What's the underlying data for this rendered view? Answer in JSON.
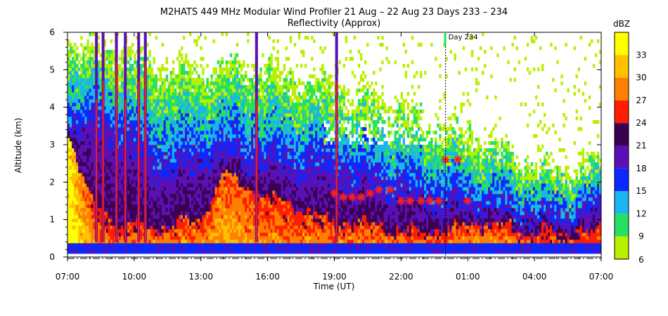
{
  "chart_data": {
    "type": "heatmap",
    "title": "M2HATS 449 MHz Modular Wind Profiler  21 Aug – 22 Aug 23 Days 233 – 234",
    "subtitle": "Reflectivity (Approx)",
    "xlabel": "Time (UT)",
    "ylabel": "Altitude (km)",
    "x_tick_labels": [
      "07:00",
      "10:00",
      "13:00",
      "16:00",
      "19:00",
      "22:00",
      "01:00",
      "04:00",
      "07:00"
    ],
    "x_tick_hours": [
      7,
      10,
      13,
      16,
      19,
      22,
      25,
      28,
      31
    ],
    "xlim_hours": [
      7,
      31
    ],
    "y_tick_labels": [
      "0",
      "1",
      "2",
      "3",
      "4",
      "5",
      "6"
    ],
    "ylim": [
      0,
      6
    ],
    "colorbar": {
      "label": "dBZ",
      "tick_labels": [
        "6",
        "9",
        "12",
        "15",
        "18",
        "21",
        "24",
        "27",
        "30",
        "33"
      ],
      "levels": [
        6,
        9,
        12,
        15,
        18,
        21,
        24,
        27,
        30,
        33,
        36
      ],
      "colors": [
        "#b8f000",
        "#28e060",
        "#1ab4ee",
        "#0a28ff",
        "#5a10b4",
        "#3c0050",
        "#ff1e00",
        "#ff8000",
        "#ffc000",
        "#ffff00"
      ]
    },
    "day_marker": {
      "label": "Day 234",
      "time_hours": 24.0
    },
    "markers": [
      {
        "t": 19.0,
        "z": 1.7
      },
      {
        "t": 19.4,
        "z": 1.6
      },
      {
        "t": 19.8,
        "z": 1.6
      },
      {
        "t": 20.2,
        "z": 1.6
      },
      {
        "t": 20.6,
        "z": 1.7
      },
      {
        "t": 21.0,
        "z": 1.8
      },
      {
        "t": 21.5,
        "z": 1.8
      },
      {
        "t": 22.0,
        "z": 1.5
      },
      {
        "t": 22.4,
        "z": 1.5
      },
      {
        "t": 22.9,
        "z": 1.5
      },
      {
        "t": 23.3,
        "z": 1.5
      },
      {
        "t": 23.7,
        "z": 1.5
      },
      {
        "t": 24.0,
        "z": 2.6
      },
      {
        "t": 24.55,
        "z": 2.6
      },
      {
        "t": 25.0,
        "z": 1.5
      }
    ],
    "profile_breakpoints": [
      {
        "t": 7.0,
        "top": 5.8,
        "dense": 3.5,
        "core": 3.4,
        "peak": 36
      },
      {
        "t": 8.3,
        "top": 5.6,
        "dense": 3.2,
        "core": 1.2,
        "peak": 27
      },
      {
        "t": 9.5,
        "top": 5.5,
        "dense": 3.0,
        "core": 0.9,
        "peak": 27
      },
      {
        "t": 11.0,
        "top": 5.2,
        "dense": 2.2,
        "core": 0.8,
        "peak": 28
      },
      {
        "t": 13.0,
        "top": 5.0,
        "dense": 2.4,
        "core": 1.0,
        "peak": 28
      },
      {
        "t": 14.0,
        "top": 5.2,
        "dense": 2.7,
        "core": 2.2,
        "peak": 30
      },
      {
        "t": 16.0,
        "top": 5.0,
        "dense": 2.4,
        "core": 1.6,
        "peak": 28
      },
      {
        "t": 19.0,
        "top": 4.6,
        "dense": 2.1,
        "core": 0.9,
        "peak": 28
      },
      {
        "t": 20.5,
        "top": 4.3,
        "dense": 1.9,
        "core": 0.9,
        "peak": 28
      },
      {
        "t": 22.0,
        "top": 4.0,
        "dense": 1.6,
        "core": 0.7,
        "peak": 27
      },
      {
        "t": 24.0,
        "top": 3.5,
        "dense": 1.3,
        "core": 0.7,
        "peak": 27
      },
      {
        "t": 25.5,
        "top": 3.2,
        "dense": 1.3,
        "core": 0.9,
        "peak": 29
      },
      {
        "t": 27.5,
        "top": 2.6,
        "dense": 1.0,
        "core": 0.7,
        "peak": 27
      },
      {
        "t": 29.0,
        "top": 2.4,
        "dense": 0.9,
        "core": 0.6,
        "peak": 26
      },
      {
        "t": 31.0,
        "top": 2.6,
        "dense": 1.2,
        "core": 0.7,
        "peak": 27
      }
    ],
    "grid": false,
    "legend": "colorbar-right"
  }
}
